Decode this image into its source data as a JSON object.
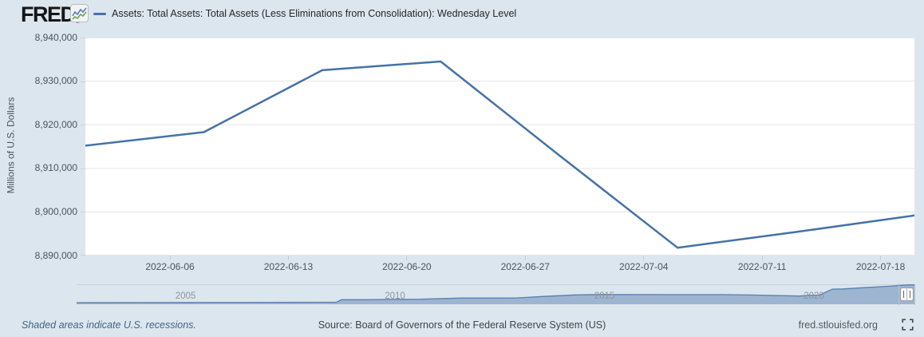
{
  "header": {
    "logo_text": "FRED",
    "registered_mark": "®",
    "legend": {
      "series_label": "Assets: Total Assets: Total Assets (Less Eliminations from Consolidation): Wednesday Level",
      "series_color": "#4572a7"
    }
  },
  "chart_data": {
    "type": "line",
    "title": "Assets: Total Assets: Total Assets (Less Eliminations from Consolidation): Wednesday Level",
    "ylabel": "Millions of U.S. Dollars",
    "xlabel": "",
    "grid": true,
    "legend_position": "top-left",
    "series_color": "#4572a7",
    "ylim": [
      8890000,
      8940000
    ],
    "y_tick_values": [
      8940000,
      8930000,
      8920000,
      8910000,
      8900000,
      8890000
    ],
    "x_range": [
      "2022-06-01",
      "2022-07-20"
    ],
    "x_tick_labels": [
      "2022-06-06",
      "2022-06-13",
      "2022-06-20",
      "2022-06-27",
      "2022-07-04",
      "2022-07-11",
      "2022-07-18"
    ],
    "x": [
      "2022-06-01",
      "2022-06-08",
      "2022-06-15",
      "2022-06-22",
      "2022-06-29",
      "2022-07-06",
      "2022-07-13",
      "2022-07-20"
    ],
    "values": [
      8915200,
      8918300,
      8932500,
      8934500,
      8913000,
      8891800,
      8895400,
      8899200
    ],
    "navigator": {
      "type": "area",
      "description": "full-history range selector, Fed total assets 2002-2022",
      "x_range_years": [
        2002.4,
        2022.4
      ],
      "ylim": [
        0,
        9200000
      ],
      "year_tick_values": [
        2005,
        2010,
        2015,
        2020
      ],
      "year_tick_labels": [
        "2005",
        "2010",
        "2015",
        "2020"
      ],
      "points": [
        [
          2002.4,
          720000
        ],
        [
          2003.5,
          760000
        ],
        [
          2005.0,
          810000
        ],
        [
          2007.0,
          870000
        ],
        [
          2008.6,
          910000
        ],
        [
          2008.72,
          2110000
        ],
        [
          2009.3,
          2080000
        ],
        [
          2009.9,
          2240000
        ],
        [
          2010.6,
          2330000
        ],
        [
          2011.6,
          2870000
        ],
        [
          2012.9,
          2920000
        ],
        [
          2013.5,
          3570000
        ],
        [
          2014.3,
          4300000
        ],
        [
          2014.9,
          4500000
        ],
        [
          2016.5,
          4460000
        ],
        [
          2017.8,
          4440000
        ],
        [
          2018.5,
          4270000
        ],
        [
          2019.65,
          3780000
        ],
        [
          2019.9,
          4140000
        ],
        [
          2020.15,
          4240000
        ],
        [
          2020.28,
          5600000
        ],
        [
          2020.45,
          7010000
        ],
        [
          2020.7,
          7080000
        ],
        [
          2021.2,
          7650000
        ],
        [
          2021.8,
          8330000
        ],
        [
          2022.25,
          8950000
        ],
        [
          2022.4,
          8915000
        ]
      ]
    }
  },
  "footer": {
    "recession_note": "Shaded areas indicate U.S. recessions.",
    "source": "Source: Board of Governors of the Federal Reserve System (US)",
    "site_url": "fred.stlouisfed.org"
  },
  "colors": {
    "page_bg": "#dce6ef",
    "plot_bg": "#ffffff",
    "gridline": "#e6e6e6",
    "series": "#4572a7",
    "axis_text": "#4d545b",
    "nav_fill": "rgba(69,114,167,0.42)",
    "nav_line": "rgba(69,114,167,0.85)"
  }
}
